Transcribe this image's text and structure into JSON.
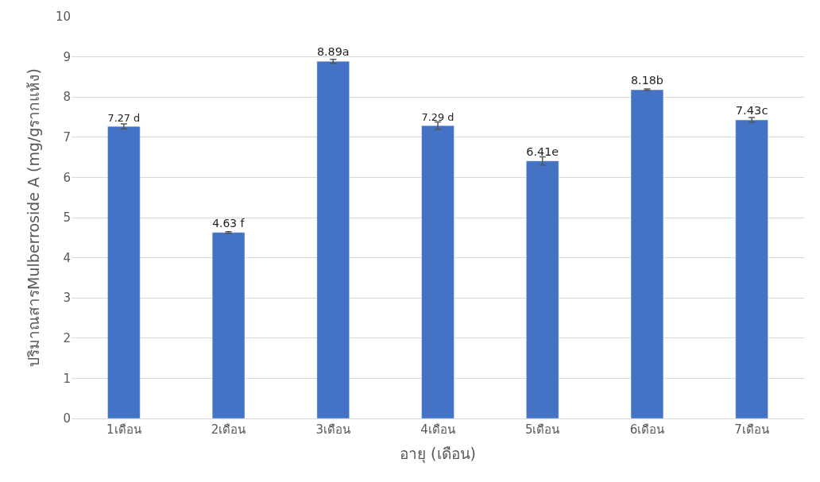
{
  "chart_data": {
    "type": "bar",
    "categories": [
      "1เดือน",
      "2เดือน",
      "3เดือน",
      "4เดือน",
      "5เดือน",
      "6เดือน",
      "7เดือน"
    ],
    "values": [
      7.27,
      4.63,
      8.89,
      7.29,
      6.41,
      8.18,
      7.43
    ],
    "value_labels": [
      "7.27 d",
      "4.63 f",
      "8.89a",
      "7.29 d",
      "6.41e",
      "8.18b",
      "7.43c"
    ],
    "errors": [
      0.06,
      0.02,
      0.05,
      0.09,
      0.1,
      0.02,
      0.06
    ],
    "color": "#4472c4",
    "xlabel": "อายุ (เดือน)",
    "ylabel": "ปริมาณสารMulberroside A (mg/gรากแห้ง)",
    "ylim": [
      0,
      10
    ],
    "yticks": [
      0,
      1,
      2,
      3,
      4,
      5,
      6,
      7,
      8,
      9,
      10
    ],
    "grid": "y",
    "legend": false
  }
}
